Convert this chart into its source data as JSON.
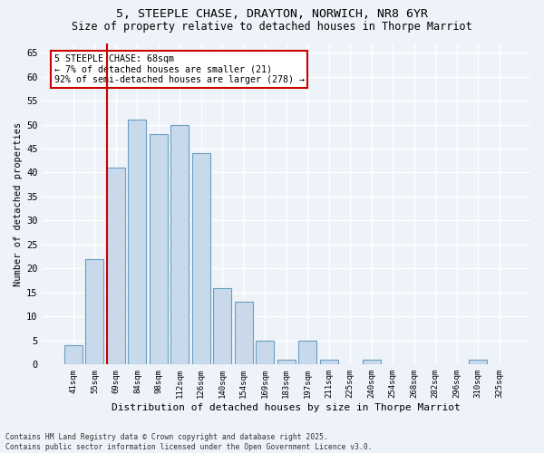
{
  "title1": "5, STEEPLE CHASE, DRAYTON, NORWICH, NR8 6YR",
  "title2": "Size of property relative to detached houses in Thorpe Marriot",
  "xlabel": "Distribution of detached houses by size in Thorpe Marriot",
  "ylabel": "Number of detached properties",
  "categories": [
    "41sqm",
    "55sqm",
    "69sqm",
    "84sqm",
    "98sqm",
    "112sqm",
    "126sqm",
    "140sqm",
    "154sqm",
    "169sqm",
    "183sqm",
    "197sqm",
    "211sqm",
    "225sqm",
    "240sqm",
    "254sqm",
    "268sqm",
    "282sqm",
    "296sqm",
    "310sqm",
    "325sqm"
  ],
  "values": [
    4,
    22,
    41,
    51,
    48,
    50,
    44,
    16,
    13,
    5,
    1,
    5,
    1,
    0,
    1,
    0,
    0,
    0,
    0,
    1,
    0
  ],
  "bar_color": "#c9d9ec",
  "bar_edge_color": "#6a9fc0",
  "annotation_text": "5 STEEPLE CHASE: 68sqm\n← 7% of detached houses are smaller (21)\n92% of semi-detached houses are larger (278) →",
  "annotation_box_color": "#ffffff",
  "annotation_box_edge_color": "#cc0000",
  "property_line_color": "#cc0000",
  "background_color": "#eef2f9",
  "grid_color": "#ffffff",
  "footer": "Contains HM Land Registry data © Crown copyright and database right 2025.\nContains public sector information licensed under the Open Government Licence v3.0.",
  "ylim": [
    0,
    67
  ],
  "yticks": [
    0,
    5,
    10,
    15,
    20,
    25,
    30,
    35,
    40,
    45,
    50,
    55,
    60,
    65
  ]
}
